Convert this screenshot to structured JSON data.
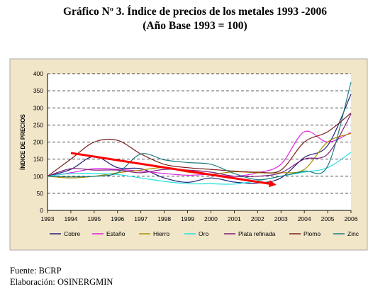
{
  "title": "Gráfico Nº 3. Índice de precios de los metales 1993 -2006",
  "subtitle": "(Año Base 1993 = 100)",
  "footer": {
    "source": "Fuente: BCRP",
    "elaboration": "Elaboración: OSINERGMIN"
  },
  "colors": {
    "panel_background": "#F2E6C9",
    "plot_background": "#FFFFFF",
    "trend_arrow": "#FF0000"
  },
  "chart_data": {
    "type": "line",
    "title": "Gráfico Nº 3. Índice de precios de los metales 1993 -2006",
    "subtitle": "(Año Base 1993 = 100)",
    "xlabel": "",
    "ylabel": "ÍNDICE DE PRECIOS",
    "x": [
      1993,
      1994,
      1995,
      1996,
      1997,
      1998,
      1999,
      2000,
      2001,
      2002,
      2003,
      2004,
      2005,
      2006
    ],
    "xticks": [
      "1993",
      "1994",
      "1995",
      "1996",
      "1997",
      "1998",
      "1999",
      "2000",
      "2001",
      "2002",
      "2003",
      "2004",
      "2005",
      "2006"
    ],
    "yticks": [
      0,
      50,
      100,
      150,
      200,
      250,
      300,
      350,
      400
    ],
    "ylim": [
      0,
      400
    ],
    "grid": "horizontal dashed",
    "legend_position": "bottom",
    "series": [
      {
        "name": "Cobre",
        "color": "#1F1F7A",
        "values": [
          100,
          120,
          158,
          125,
          122,
          95,
          82,
          95,
          83,
          80,
          95,
          155,
          190,
          340
        ]
      },
      {
        "name": "Estaño",
        "color": "#E020E0",
        "values": [
          100,
          110,
          122,
          120,
          115,
          108,
          103,
          105,
          100,
          110,
          135,
          230,
          200,
          228
        ]
      },
      {
        "name": "Hierro",
        "color": "#A89000",
        "values": [
          100,
          95,
          100,
          110,
          118,
          125,
          112,
          106,
          113,
          110,
          110,
          120,
          200,
          225
        ]
      },
      {
        "name": "Oro",
        "color": "#20E0E0",
        "values": [
          100,
          108,
          108,
          105,
          95,
          85,
          78,
          78,
          77,
          87,
          100,
          112,
          125,
          170
        ]
      },
      {
        "name": "Plata refinada",
        "color": "#7A1F7A",
        "values": [
          100,
          122,
          118,
          118,
          110,
          120,
          118,
          112,
          100,
          100,
          110,
          150,
          165,
          282
        ]
      },
      {
        "name": "Plomo",
        "color": "#7A1F1F",
        "values": [
          100,
          150,
          200,
          205,
          165,
          135,
          125,
          120,
          115,
          112,
          118,
          200,
          230,
          285
        ]
      },
      {
        "name": "Zinc",
        "color": "#1F7A7A",
        "values": [
          100,
          98,
          100,
          110,
          165,
          148,
          140,
          135,
          108,
          90,
          100,
          115,
          130,
          375
        ]
      }
    ],
    "trend_arrow": {
      "from": {
        "x": 1994,
        "y": 168
      },
      "to": {
        "x": 2002.8,
        "y": 75
      }
    }
  }
}
